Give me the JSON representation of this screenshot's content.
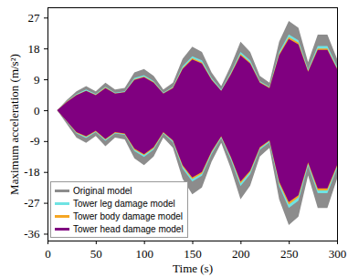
{
  "chart_data": {
    "type": "area",
    "xlabel": "Time (s)",
    "ylabel": "Maximum acceleration (m/s²)",
    "x": [
      0,
      10,
      20,
      30,
      40,
      50,
      60,
      70,
      80,
      90,
      100,
      110,
      120,
      130,
      140,
      150,
      160,
      170,
      180,
      190,
      200,
      210,
      220,
      230,
      240,
      250,
      260,
      270,
      280,
      290,
      300
    ],
    "xlim": [
      0,
      300
    ],
    "xticks": [
      0,
      50,
      100,
      150,
      200,
      250,
      300
    ],
    "ylim": [
      -38,
      30
    ],
    "yticks": [
      -36,
      -27,
      -18,
      -9,
      0,
      9,
      18,
      27
    ],
    "legend": "lower left",
    "series": [
      {
        "name": "Original model",
        "color": "#8c8c8c",
        "upper": [
          0,
          0,
          3,
          5.5,
          7,
          5.5,
          8,
          6,
          6.5,
          11,
          12,
          10,
          6,
          8,
          15,
          18.5,
          17,
          11,
          7,
          13,
          20,
          17,
          10,
          8,
          20,
          26,
          24,
          14,
          22,
          22,
          15
        ],
        "lower": [
          0,
          0,
          -4,
          -8,
          -9.5,
          -7.5,
          -10.5,
          -8,
          -8.5,
          -14,
          -16,
          -13.5,
          -8,
          -11,
          -20,
          -24.5,
          -22.5,
          -15,
          -9.5,
          -17,
          -26,
          -22,
          -13.5,
          -11,
          -26,
          -33.5,
          -31,
          -19,
          -28.5,
          -28.5,
          -20
        ]
      },
      {
        "name": "Tower leg damage model",
        "color": "#6fe3e3",
        "upper": [
          0,
          0,
          2.6,
          4.7,
          6,
          4.7,
          6.8,
          5.1,
          5.5,
          9.4,
          10.2,
          8.5,
          5.1,
          6.8,
          12.8,
          15.7,
          14.5,
          9.4,
          6,
          11.1,
          17,
          14.5,
          8.5,
          6.8,
          17,
          22.1,
          20.4,
          11.9,
          18.7,
          18.7,
          12.8
        ],
        "lower": [
          0,
          0,
          -3.4,
          -6.8,
          -8.1,
          -6.4,
          -8.9,
          -6.8,
          -7.2,
          -11.9,
          -13.6,
          -11.5,
          -6.8,
          -9.4,
          -17,
          -20.8,
          -19.1,
          -12.8,
          -8.1,
          -14.5,
          -22.1,
          -18.7,
          -11.5,
          -9.4,
          -22.1,
          -28.5,
          -26.4,
          -16.2,
          -24.2,
          -24.2,
          -17
        ]
      },
      {
        "name": "Tower body damage model",
        "color": "#f5a623",
        "upper": [
          0,
          0,
          2.5,
          4.5,
          5.7,
          4.5,
          6.6,
          4.9,
          5.3,
          9,
          9.8,
          8.2,
          4.9,
          6.6,
          12.3,
          15.2,
          13.9,
          9,
          5.7,
          10.7,
          16.4,
          13.9,
          8.2,
          6.6,
          16.4,
          21.3,
          19.7,
          11.5,
          18,
          18,
          12.3
        ],
        "lower": [
          0,
          0,
          -3.3,
          -6.6,
          -7.8,
          -6.2,
          -8.6,
          -6.6,
          -7,
          -11.5,
          -13.1,
          -11.1,
          -6.6,
          -9,
          -16.4,
          -20.1,
          -18.5,
          -12.3,
          -7.8,
          -13.9,
          -21.3,
          -18,
          -11.1,
          -9,
          -21.3,
          -27.5,
          -25.4,
          -15.6,
          -23.4,
          -23.4,
          -16.4
        ]
      },
      {
        "name": "Tower head damage model",
        "color": "#800080",
        "upper": [
          0,
          0,
          2.4,
          4.4,
          5.6,
          4.4,
          6.4,
          4.8,
          5.2,
          8.8,
          9.6,
          8,
          4.8,
          6.4,
          12,
          14.8,
          13.6,
          8.8,
          5.6,
          10.4,
          16,
          13.6,
          8,
          6.4,
          16,
          20.8,
          19.2,
          11.2,
          17.6,
          17.6,
          12
        ],
        "lower": [
          0,
          0,
          -3.2,
          -6.4,
          -7.6,
          -6,
          -8.4,
          -6.4,
          -6.8,
          -11.2,
          -12.8,
          -10.8,
          -6.4,
          -8.8,
          -16,
          -19.6,
          -18,
          -12,
          -7.6,
          -13.6,
          -20.8,
          -17.6,
          -10.8,
          -8.8,
          -20.8,
          -26.8,
          -24.8,
          -15.2,
          -22.8,
          -22.8,
          -16
        ]
      }
    ]
  }
}
